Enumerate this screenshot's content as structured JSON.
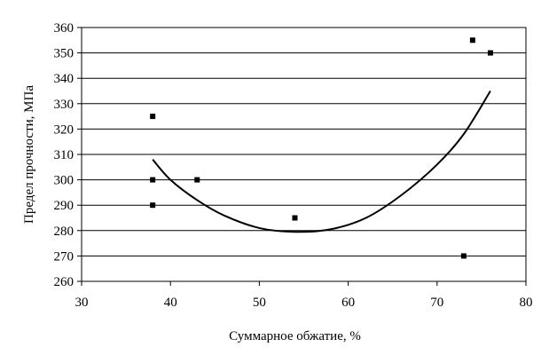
{
  "chart_data": {
    "type": "scatter",
    "xlabel": "Суммарное обжатие, %",
    "ylabel": "Предел прочности, МПа",
    "xlim": [
      30,
      80
    ],
    "ylim": [
      260,
      360
    ],
    "x_ticks": [
      30,
      40,
      50,
      60,
      70,
      80
    ],
    "y_ticks": [
      260,
      270,
      280,
      290,
      300,
      310,
      320,
      330,
      340,
      350,
      360
    ],
    "grid": "horizontal",
    "points": [
      {
        "x": 38,
        "y": 325
      },
      {
        "x": 38,
        "y": 300
      },
      {
        "x": 38,
        "y": 290
      },
      {
        "x": 43,
        "y": 300
      },
      {
        "x": 54,
        "y": 285
      },
      {
        "x": 73,
        "y": 270
      },
      {
        "x": 74,
        "y": 355
      },
      {
        "x": 76,
        "y": 350
      }
    ],
    "trendline": {
      "type": "polynomial-2",
      "x_range": [
        38,
        76
      ],
      "points": [
        {
          "x": 38,
          "y": 308
        },
        {
          "x": 40,
          "y": 300
        },
        {
          "x": 43,
          "y": 292
        },
        {
          "x": 46,
          "y": 286
        },
        {
          "x": 50,
          "y": 281
        },
        {
          "x": 54,
          "y": 279.5
        },
        {
          "x": 58,
          "y": 280.5
        },
        {
          "x": 62,
          "y": 285
        },
        {
          "x": 66,
          "y": 294
        },
        {
          "x": 70,
          "y": 306
        },
        {
          "x": 73,
          "y": 318
        },
        {
          "x": 76,
          "y": 335
        }
      ]
    },
    "colors": {
      "points": "#000000",
      "trendline": "#000000",
      "grid": "#000000"
    }
  }
}
